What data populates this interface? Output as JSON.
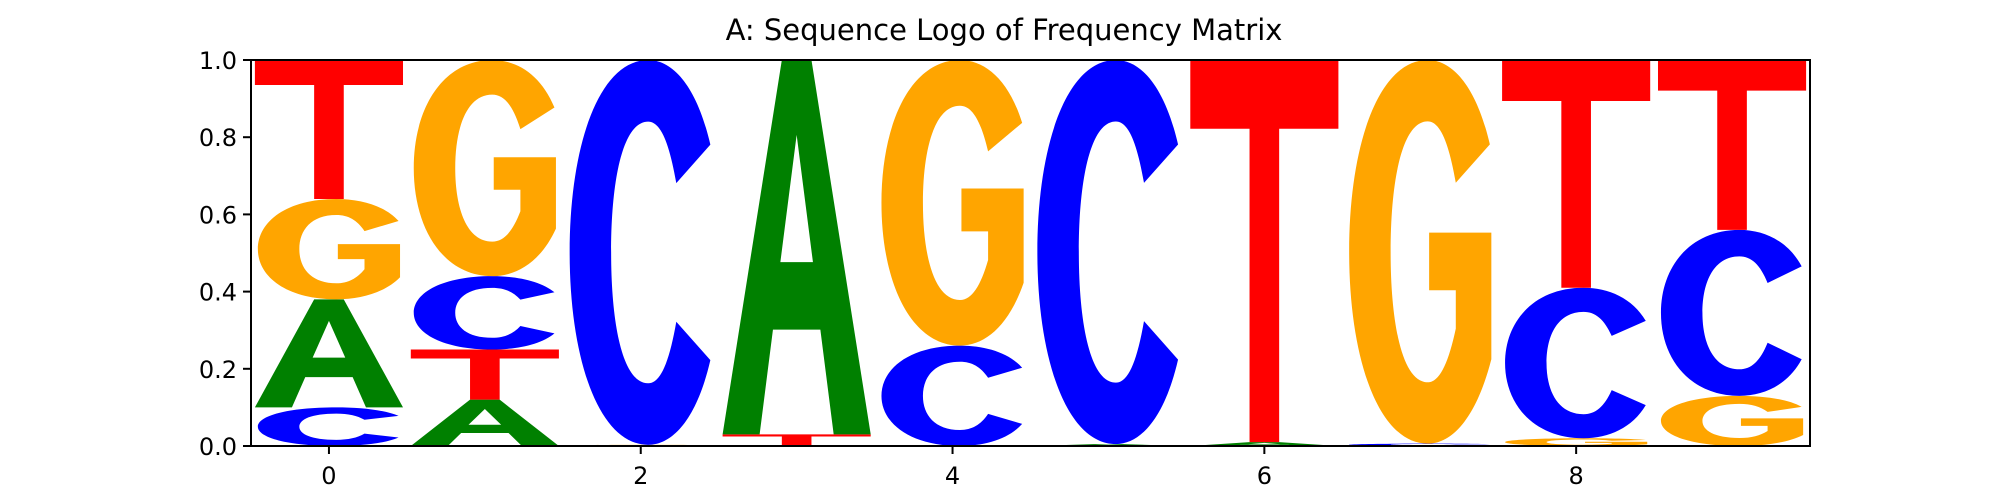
{
  "chart_data": {
    "type": "sequence-logo",
    "title": "A: Sequence Logo of Frequency Matrix",
    "xlabel": "",
    "ylabel": "",
    "ylim": [
      0,
      1
    ],
    "xlim": [
      -0.5,
      9.5
    ],
    "xticks": [
      0,
      2,
      4,
      6,
      8
    ],
    "xtick_labels": [
      "0",
      "2",
      "4",
      "6",
      "8"
    ],
    "yticks": [
      0,
      0.2,
      0.4,
      0.6,
      0.8,
      1
    ],
    "ytick_labels": [
      "0.0",
      "0.2",
      "0.4",
      "0.6",
      "0.8",
      "1.0"
    ],
    "grid": false,
    "colors": {
      "A": "#008000",
      "C": "#0000ff",
      "G": "#ffa500",
      "T": "#ff0000"
    },
    "positions": [
      {
        "pos": 0,
        "stack": [
          {
            "letter": "C",
            "freq": 0.1
          },
          {
            "letter": "A",
            "freq": 0.28
          },
          {
            "letter": "G",
            "freq": 0.26
          },
          {
            "letter": "T",
            "freq": 0.36
          }
        ]
      },
      {
        "pos": 1,
        "stack": [
          {
            "letter": "A",
            "freq": 0.12
          },
          {
            "letter": "T",
            "freq": 0.13
          },
          {
            "letter": "C",
            "freq": 0.19
          },
          {
            "letter": "G",
            "freq": 0.56
          }
        ]
      },
      {
        "pos": 2,
        "stack": [
          {
            "letter": "G",
            "freq": 0.003
          },
          {
            "letter": "C",
            "freq": 0.997
          }
        ]
      },
      {
        "pos": 3,
        "stack": [
          {
            "letter": "T",
            "freq": 0.03
          },
          {
            "letter": "A",
            "freq": 0.97
          }
        ]
      },
      {
        "pos": 4,
        "stack": [
          {
            "letter": "C",
            "freq": 0.26
          },
          {
            "letter": "G",
            "freq": 0.74
          }
        ]
      },
      {
        "pos": 5,
        "stack": [
          {
            "letter": "A",
            "freq": 0.005
          },
          {
            "letter": "C",
            "freq": 0.995
          }
        ]
      },
      {
        "pos": 6,
        "stack": [
          {
            "letter": "A",
            "freq": 0.01
          },
          {
            "letter": "T",
            "freq": 0.99
          }
        ]
      },
      {
        "pos": 7,
        "stack": [
          {
            "letter": "C",
            "freq": 0.006
          },
          {
            "letter": "G",
            "freq": 0.994
          }
        ]
      },
      {
        "pos": 8,
        "stack": [
          {
            "letter": "G",
            "freq": 0.02
          },
          {
            "letter": "C",
            "freq": 0.39
          },
          {
            "letter": "T",
            "freq": 0.59
          }
        ]
      },
      {
        "pos": 9,
        "stack": [
          {
            "letter": "G",
            "freq": 0.13
          },
          {
            "letter": "C",
            "freq": 0.43
          },
          {
            "letter": "T",
            "freq": 0.44
          }
        ]
      }
    ]
  }
}
